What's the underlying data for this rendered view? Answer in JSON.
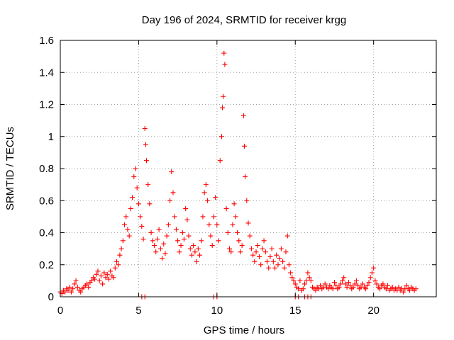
{
  "chart_data": {
    "type": "scatter",
    "title": "Day 196 of 2024, SRMTID for receiver krgg",
    "xlabel": "GPS time / hours",
    "ylabel": "SRMTID / TECUs",
    "xlim": [
      0,
      24
    ],
    "ylim": [
      0,
      1.6
    ],
    "xticks": [
      0,
      5,
      10,
      15,
      20
    ],
    "xtick_labels": [
      "0",
      "5",
      "10",
      "15",
      "20"
    ],
    "yticks": [
      0,
      0.2,
      0.4,
      0.6,
      0.8,
      1.0,
      1.2,
      1.4,
      1.6
    ],
    "ytick_labels": [
      "0",
      "0.2",
      "0.4",
      "0.6",
      "0.8",
      "1",
      "1.2",
      "1.4",
      "1.6"
    ],
    "grid": true,
    "marker": "+",
    "color": "#ff0000",
    "series": [
      {
        "name": "SRMTID",
        "points": [
          [
            0.0,
            0.03
          ],
          [
            0.1,
            0.02
          ],
          [
            0.2,
            0.04
          ],
          [
            0.3,
            0.03
          ],
          [
            0.4,
            0.05
          ],
          [
            0.5,
            0.04
          ],
          [
            0.6,
            0.06
          ],
          [
            0.7,
            0.03
          ],
          [
            0.8,
            0.05
          ],
          [
            0.9,
            0.08
          ],
          [
            1.0,
            0.1
          ],
          [
            1.1,
            0.06
          ],
          [
            1.2,
            0.04
          ],
          [
            1.3,
            0.03
          ],
          [
            1.4,
            0.05
          ],
          [
            1.5,
            0.06
          ],
          [
            1.6,
            0.07
          ],
          [
            1.7,
            0.08
          ],
          [
            1.8,
            0.06
          ],
          [
            1.9,
            0.09
          ],
          [
            2.0,
            0.1
          ],
          [
            2.1,
            0.12
          ],
          [
            2.2,
            0.11
          ],
          [
            2.3,
            0.14
          ],
          [
            2.4,
            0.16
          ],
          [
            2.5,
            0.1
          ],
          [
            2.6,
            0.13
          ],
          [
            2.7,
            0.08
          ],
          [
            2.8,
            0.15
          ],
          [
            2.9,
            0.12
          ],
          [
            3.0,
            0.14
          ],
          [
            3.1,
            0.11
          ],
          [
            3.2,
            0.16
          ],
          [
            3.3,
            0.13
          ],
          [
            3.4,
            0.12
          ],
          [
            3.5,
            0.18
          ],
          [
            3.6,
            0.22
          ],
          [
            3.7,
            0.2
          ],
          [
            3.8,
            0.26
          ],
          [
            3.9,
            0.3
          ],
          [
            4.0,
            0.35
          ],
          [
            4.1,
            0.45
          ],
          [
            4.2,
            0.5
          ],
          [
            4.3,
            0.42
          ],
          [
            4.4,
            0.38
          ],
          [
            4.5,
            0.55
          ],
          [
            4.6,
            0.62
          ],
          [
            4.7,
            0.75
          ],
          [
            4.8,
            0.8
          ],
          [
            4.9,
            0.68
          ],
          [
            5.0,
            0.58
          ],
          [
            5.1,
            0.5
          ],
          [
            5.2,
            0.44
          ],
          [
            5.3,
            0.36
          ],
          [
            5.4,
            1.05
          ],
          [
            5.45,
            0.95
          ],
          [
            5.5,
            0.85
          ],
          [
            5.6,
            0.7
          ],
          [
            5.7,
            0.58
          ],
          [
            5.8,
            0.4
          ],
          [
            5.9,
            0.35
          ],
          [
            6.0,
            0.32
          ],
          [
            6.1,
            0.28
          ],
          [
            6.2,
            0.36
          ],
          [
            6.3,
            0.42
          ],
          [
            6.4,
            0.3
          ],
          [
            6.5,
            0.24
          ],
          [
            6.6,
            0.33
          ],
          [
            6.7,
            0.27
          ],
          [
            6.8,
            0.38
          ],
          [
            6.9,
            0.45
          ],
          [
            7.0,
            0.6
          ],
          [
            7.1,
            0.78
          ],
          [
            7.2,
            0.65
          ],
          [
            7.3,
            0.5
          ],
          [
            7.4,
            0.42
          ],
          [
            7.5,
            0.35
          ],
          [
            7.6,
            0.28
          ],
          [
            7.7,
            0.32
          ],
          [
            7.8,
            0.4
          ],
          [
            7.9,
            0.36
          ],
          [
            8.0,
            0.55
          ],
          [
            8.1,
            0.48
          ],
          [
            8.2,
            0.38
          ],
          [
            8.3,
            0.3
          ],
          [
            8.4,
            0.26
          ],
          [
            8.5,
            0.32
          ],
          [
            8.6,
            0.28
          ],
          [
            8.7,
            0.22
          ],
          [
            8.8,
            0.3
          ],
          [
            8.9,
            0.26
          ],
          [
            9.0,
            0.35
          ],
          [
            9.1,
            0.5
          ],
          [
            9.2,
            0.65
          ],
          [
            9.3,
            0.7
          ],
          [
            9.4,
            0.6
          ],
          [
            9.5,
            0.45
          ],
          [
            9.6,
            0.38
          ],
          [
            9.7,
            0.32
          ],
          [
            9.8,
            0.5
          ],
          [
            9.9,
            0.62
          ],
          [
            10.0,
            0.45
          ],
          [
            10.1,
            0.35
          ],
          [
            10.2,
            0.85
          ],
          [
            10.3,
            1.0
          ],
          [
            10.35,
            1.18
          ],
          [
            10.4,
            1.25
          ],
          [
            10.45,
            1.52
          ],
          [
            10.5,
            1.45
          ],
          [
            10.6,
            0.55
          ],
          [
            10.7,
            0.4
          ],
          [
            10.8,
            0.3
          ],
          [
            10.9,
            0.28
          ],
          [
            11.0,
            0.45
          ],
          [
            11.1,
            0.58
          ],
          [
            11.2,
            0.5
          ],
          [
            11.3,
            0.4
          ],
          [
            11.4,
            0.35
          ],
          [
            11.5,
            0.28
          ],
          [
            11.6,
            0.32
          ],
          [
            11.7,
            1.13
          ],
          [
            11.75,
            0.94
          ],
          [
            11.8,
            0.75
          ],
          [
            11.9,
            0.6
          ],
          [
            12.0,
            0.46
          ],
          [
            12.1,
            0.38
          ],
          [
            12.2,
            0.3
          ],
          [
            12.3,
            0.26
          ],
          [
            12.4,
            0.22
          ],
          [
            12.5,
            0.28
          ],
          [
            12.6,
            0.32
          ],
          [
            12.7,
            0.25
          ],
          [
            12.8,
            0.2
          ],
          [
            12.9,
            0.3
          ],
          [
            13.0,
            0.35
          ],
          [
            13.1,
            0.28
          ],
          [
            13.2,
            0.22
          ],
          [
            13.3,
            0.18
          ],
          [
            13.4,
            0.25
          ],
          [
            13.5,
            0.3
          ],
          [
            13.6,
            0.22
          ],
          [
            13.7,
            0.18
          ],
          [
            13.8,
            0.26
          ],
          [
            13.9,
            0.2
          ],
          [
            14.0,
            0.24
          ],
          [
            14.1,
            0.3
          ],
          [
            14.2,
            0.22
          ],
          [
            14.3,
            0.18
          ],
          [
            14.4,
            0.28
          ],
          [
            14.5,
            0.38
          ],
          [
            14.6,
            0.2
          ],
          [
            14.7,
            0.15
          ],
          [
            14.8,
            0.12
          ],
          [
            14.9,
            0.1
          ],
          [
            15.0,
            0.08
          ],
          [
            15.1,
            0.06
          ],
          [
            15.2,
            0.05
          ],
          [
            15.3,
            0.1
          ],
          [
            15.4,
            0.04
          ],
          [
            15.5,
            0.05
          ],
          [
            15.6,
            0.08
          ],
          [
            15.7,
            0.1
          ],
          [
            15.8,
            0.15
          ],
          [
            15.9,
            0.12
          ],
          [
            16.0,
            0.1
          ],
          [
            16.1,
            0.06
          ],
          [
            16.2,
            0.05
          ],
          [
            16.3,
            0.04
          ],
          [
            16.4,
            0.06
          ],
          [
            16.5,
            0.05
          ],
          [
            16.6,
            0.07
          ],
          [
            16.7,
            0.05
          ],
          [
            16.8,
            0.06
          ],
          [
            16.9,
            0.08
          ],
          [
            17.0,
            0.06
          ],
          [
            17.1,
            0.05
          ],
          [
            17.2,
            0.07
          ],
          [
            17.3,
            0.06
          ],
          [
            17.4,
            0.05
          ],
          [
            17.5,
            0.09
          ],
          [
            17.6,
            0.07
          ],
          [
            17.7,
            0.05
          ],
          [
            17.8,
            0.06
          ],
          [
            17.9,
            0.08
          ],
          [
            18.0,
            0.1
          ],
          [
            18.1,
            0.12
          ],
          [
            18.2,
            0.08
          ],
          [
            18.3,
            0.06
          ],
          [
            18.4,
            0.09
          ],
          [
            18.5,
            0.07
          ],
          [
            18.6,
            0.05
          ],
          [
            18.7,
            0.06
          ],
          [
            18.8,
            0.08
          ],
          [
            18.9,
            0.1
          ],
          [
            19.0,
            0.07
          ],
          [
            19.1,
            0.05
          ],
          [
            19.2,
            0.06
          ],
          [
            19.3,
            0.08
          ],
          [
            19.4,
            0.06
          ],
          [
            19.5,
            0.05
          ],
          [
            19.6,
            0.07
          ],
          [
            19.7,
            0.09
          ],
          [
            19.8,
            0.12
          ],
          [
            19.9,
            0.15
          ],
          [
            20.0,
            0.18
          ],
          [
            20.1,
            0.1
          ],
          [
            20.2,
            0.08
          ],
          [
            20.3,
            0.06
          ],
          [
            20.4,
            0.05
          ],
          [
            20.5,
            0.07
          ],
          [
            20.6,
            0.08
          ],
          [
            20.7,
            0.06
          ],
          [
            20.8,
            0.05
          ],
          [
            20.9,
            0.07
          ],
          [
            21.0,
            0.04
          ],
          [
            21.1,
            0.05
          ],
          [
            21.2,
            0.06
          ],
          [
            21.3,
            0.04
          ],
          [
            21.4,
            0.05
          ],
          [
            21.5,
            0.04
          ],
          [
            21.6,
            0.06
          ],
          [
            21.7,
            0.04
          ],
          [
            21.8,
            0.05
          ],
          [
            21.9,
            0.03
          ],
          [
            22.0,
            0.05
          ],
          [
            22.1,
            0.07
          ],
          [
            22.2,
            0.05
          ],
          [
            22.3,
            0.04
          ],
          [
            22.4,
            0.06
          ],
          [
            22.5,
            0.05
          ],
          [
            22.6,
            0.04
          ],
          [
            22.7,
            0.05
          ],
          [
            5.2,
            0.0
          ],
          [
            5.4,
            0.0
          ],
          [
            9.8,
            0.0
          ],
          [
            10.0,
            0.0
          ],
          [
            15.0,
            0.0
          ],
          [
            15.2,
            0.0
          ],
          [
            15.6,
            0.0
          ],
          [
            15.8,
            0.0
          ],
          [
            16.0,
            0.0
          ]
        ]
      }
    ]
  }
}
